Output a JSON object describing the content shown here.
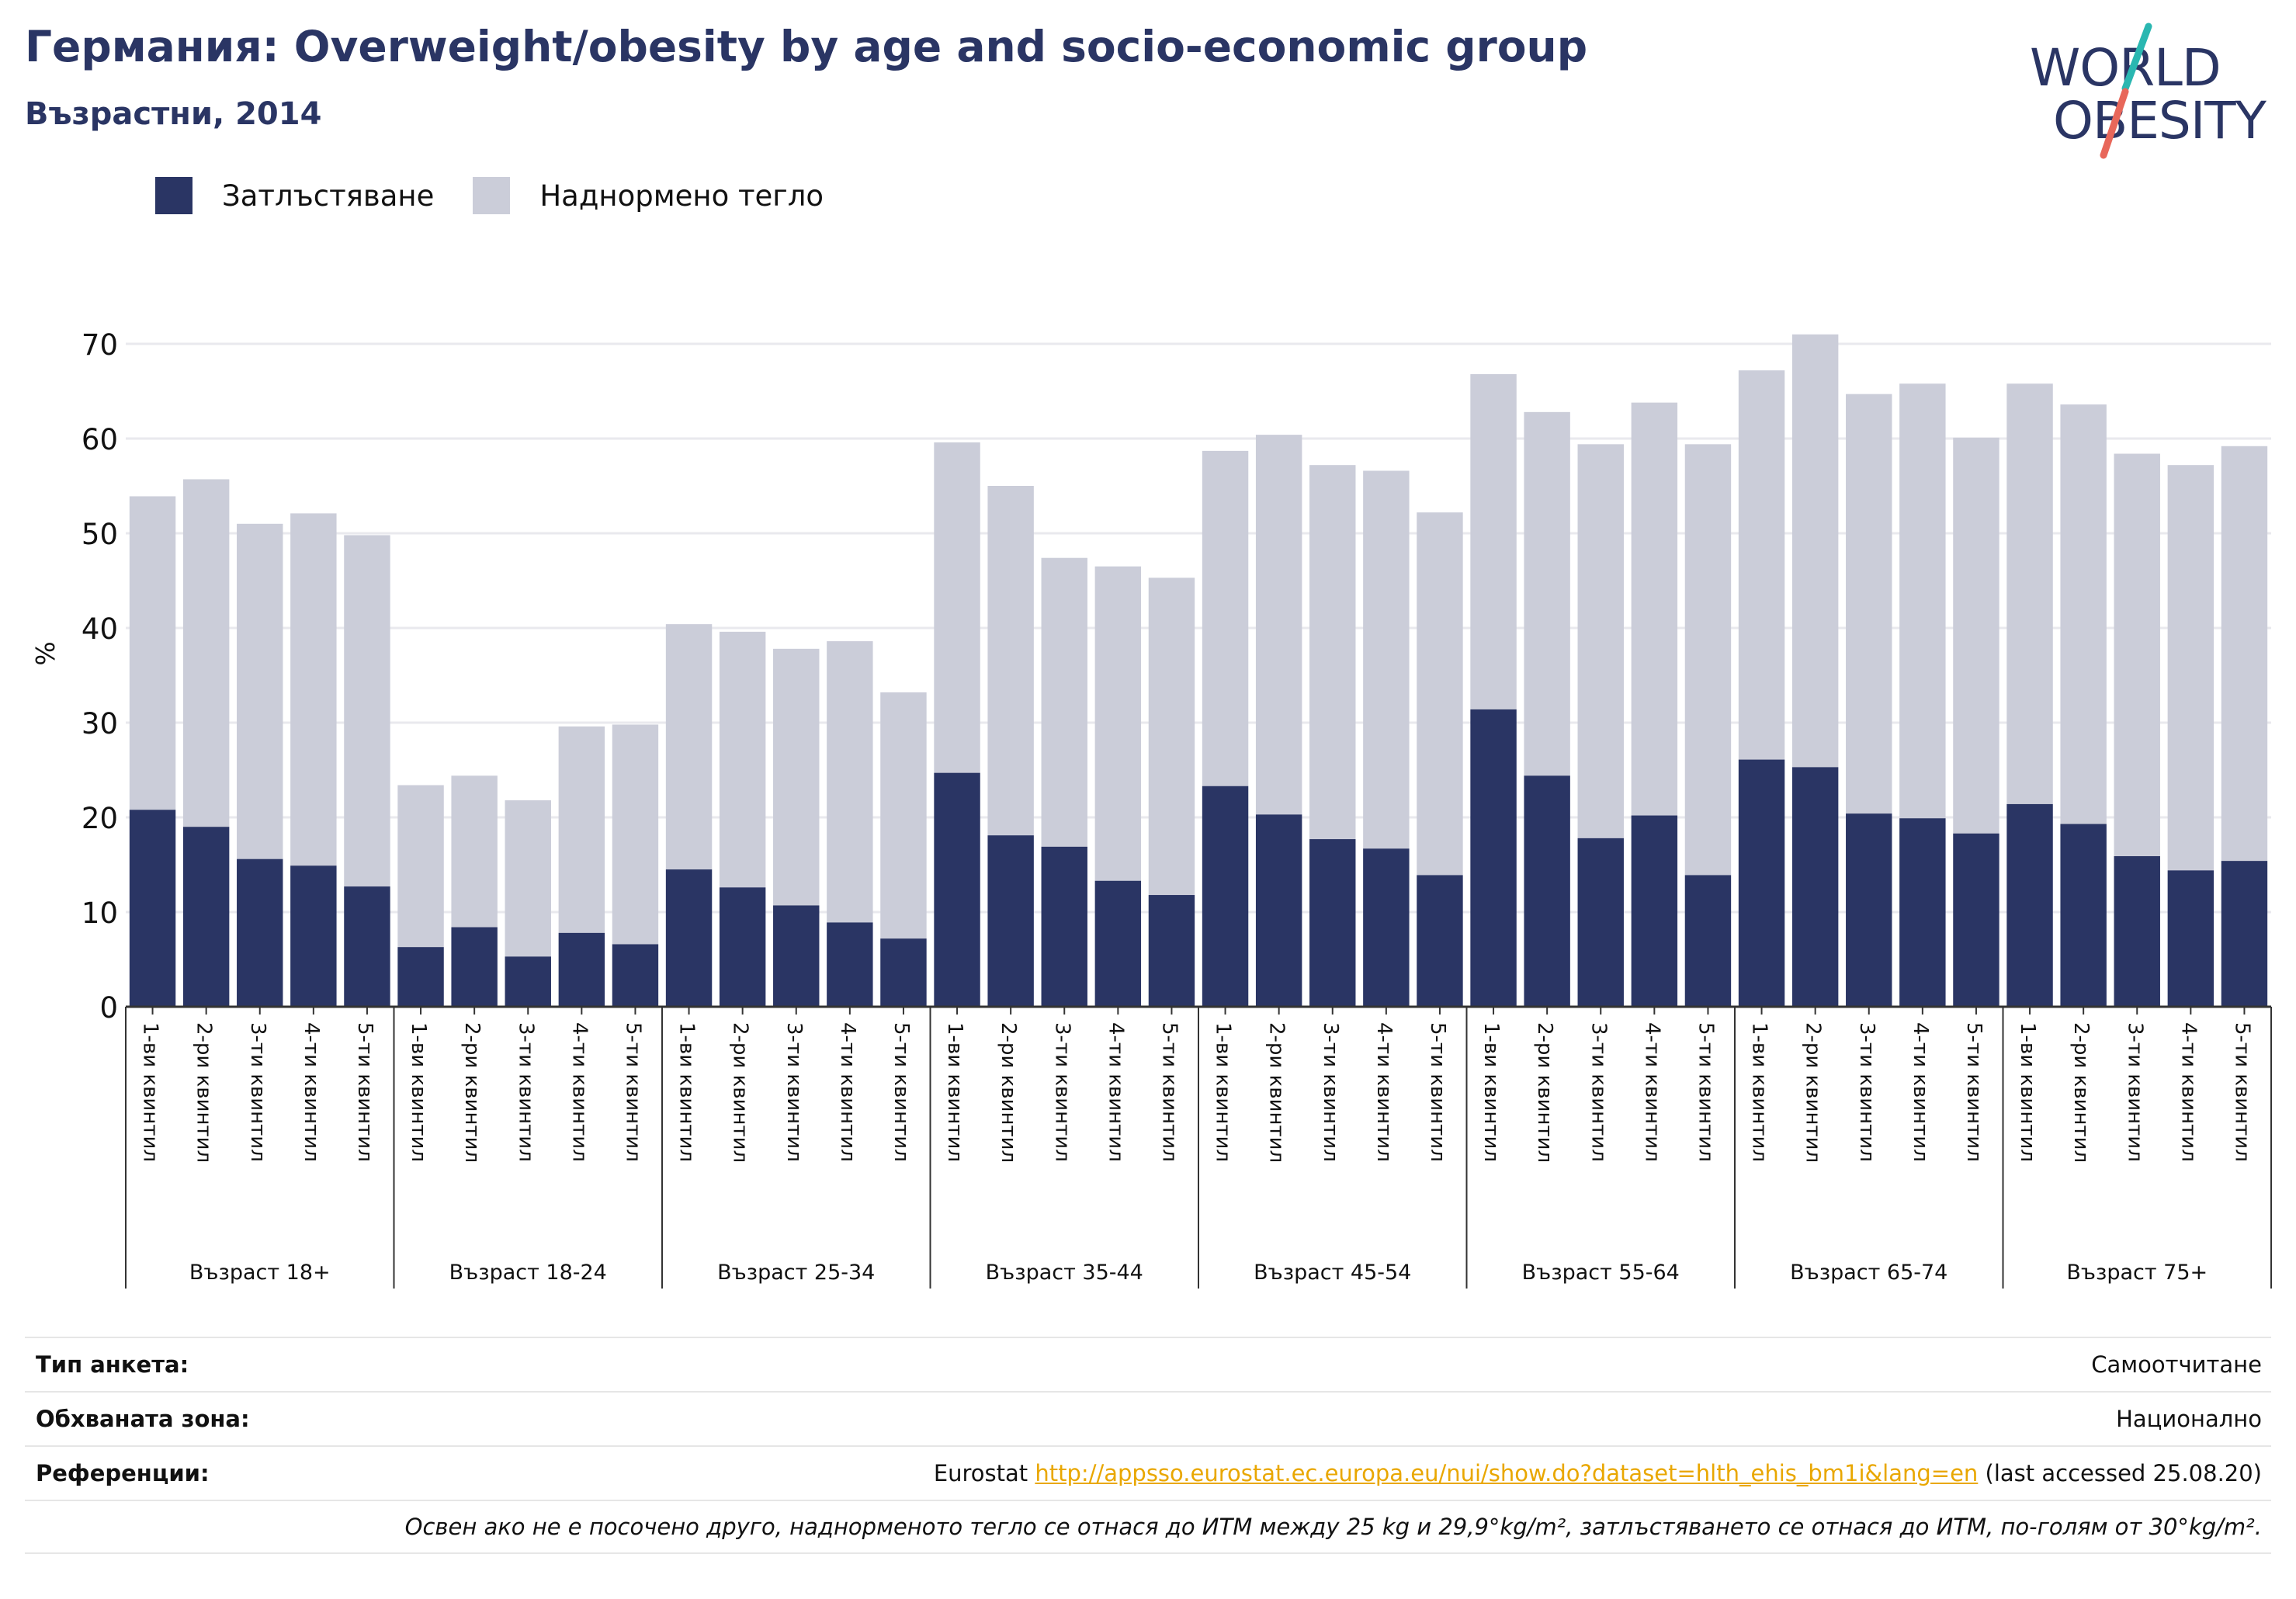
{
  "header": {
    "title": "Германия: Overweight/obesity by age and socio-economic group",
    "subtitle": "Възрастни, 2014"
  },
  "logo": {
    "line1": "WORLD",
    "line2": "OBESITY",
    "accent_colors": [
      "#2ab7b1",
      "#e8675a"
    ]
  },
  "colors": {
    "obesity": "#2a3564",
    "overweight": "#cbcdd9",
    "grid": "#e9e9ee",
    "axis": "#333333"
  },
  "legend": [
    {
      "label": "Затлъстяване",
      "color": "#2a3564"
    },
    {
      "label": "Наднормено тегло",
      "color": "#cbcdd9"
    }
  ],
  "chart_data": {
    "type": "bar",
    "stacked": true,
    "ylabel": "%",
    "ylim": [
      0,
      72
    ],
    "yticks": [
      0,
      10,
      20,
      30,
      40,
      50,
      60,
      70
    ],
    "grid": true,
    "legend_position": "top-left",
    "quintile_labels": [
      "1-ви квинтил",
      "2-ри квинтил",
      "3-ти квинтил",
      "4-ти квинтил",
      "5-ти квинтил"
    ],
    "groups": [
      {
        "label": "Възраст 18+",
        "obesity": [
          20.8,
          19.0,
          15.6,
          14.9,
          12.7
        ],
        "total": [
          53.9,
          55.7,
          51.0,
          52.1,
          49.8
        ]
      },
      {
        "label": "Възраст 18-24",
        "obesity": [
          6.3,
          8.4,
          5.3,
          7.8,
          6.6
        ],
        "total": [
          23.4,
          24.4,
          21.8,
          29.6,
          29.8
        ]
      },
      {
        "label": "Възраст 25-34",
        "obesity": [
          14.5,
          12.6,
          10.7,
          8.9,
          7.2
        ],
        "total": [
          40.4,
          39.6,
          37.8,
          38.6,
          33.2
        ]
      },
      {
        "label": "Възраст 35-44",
        "obesity": [
          24.7,
          18.1,
          16.9,
          13.3,
          11.8
        ],
        "total": [
          59.6,
          55.0,
          47.4,
          46.5,
          45.3
        ]
      },
      {
        "label": "Възраст 45-54",
        "obesity": [
          23.3,
          20.3,
          17.7,
          16.7,
          13.9
        ],
        "total": [
          58.7,
          60.4,
          57.2,
          56.6,
          52.2
        ]
      },
      {
        "label": "Възраст 55-64",
        "obesity": [
          31.4,
          24.4,
          17.8,
          20.2,
          13.9
        ],
        "total": [
          66.8,
          62.8,
          59.4,
          63.8,
          59.4
        ]
      },
      {
        "label": "Възраст 65-74",
        "obesity": [
          26.1,
          25.3,
          20.4,
          19.9,
          18.3
        ],
        "total": [
          67.2,
          71.0,
          64.7,
          65.8,
          60.1
        ]
      },
      {
        "label": "Възраст 75+",
        "obesity": [
          21.4,
          19.3,
          15.9,
          14.4,
          15.4
        ],
        "total": [
          65.8,
          63.6,
          58.4,
          57.2,
          59.2
        ]
      }
    ]
  },
  "meta": {
    "survey_label": "Тип анкета:",
    "survey_value": "Самоотчитане",
    "area_label": "Обхваната зона:",
    "area_value": "Национално",
    "ref_label": "Референции:",
    "ref_prefix": "Eurostat",
    "ref_link": "http://appsso.eurostat.ec.europa.eu/nui/show.do?dataset=hlth_ehis_bm1i&lang=en",
    "ref_suffix": "(last accessed 25.08.20)",
    "note": "Освен ако не е посочено друго, наднорменото тегло се отнася до ИТМ между 25 kg и 29,9°kg/m², затлъстяването се отнася до ИТМ, по-голям от 30°kg/m²."
  }
}
